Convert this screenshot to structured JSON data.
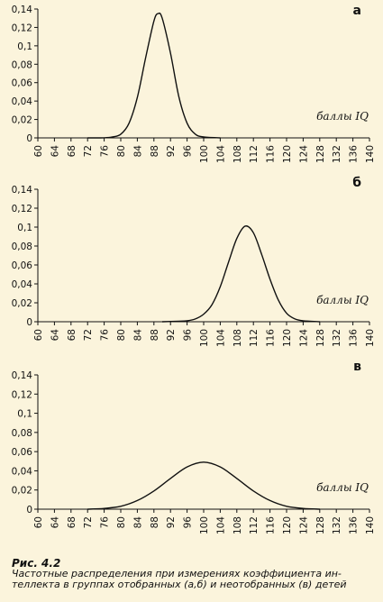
{
  "chart_data": [
    {
      "type": "line",
      "panel_label": "а",
      "xlabel": "баллы IQ",
      "ylabel": "",
      "xlim": [
        60,
        140
      ],
      "ylim": [
        0,
        0.14
      ],
      "x_ticks": [
        60,
        64,
        68,
        72,
        76,
        80,
        84,
        88,
        92,
        96,
        100,
        104,
        108,
        112,
        116,
        120,
        124,
        128,
        132,
        136,
        140
      ],
      "y_ticks": [
        "0",
        "0,02",
        "0,04",
        "0,06",
        "0,08",
        "0,1",
        "0,12",
        "0,14"
      ],
      "series": [
        {
          "x": [
            72,
            76,
            78,
            80,
            82,
            84,
            86,
            88,
            89,
            90,
            92,
            94,
            96,
            98,
            100,
            104
          ],
          "y": [
            0,
            0.0001,
            0.001,
            0.004,
            0.016,
            0.044,
            0.087,
            0.127,
            0.135,
            0.13,
            0.092,
            0.045,
            0.016,
            0.004,
            0.001,
            0
          ]
        }
      ]
    },
    {
      "type": "line",
      "panel_label": "б",
      "xlabel": "баллы IQ",
      "ylabel": "",
      "xlim": [
        60,
        140
      ],
      "ylim": [
        0,
        0.14
      ],
      "x_ticks": [
        60,
        64,
        68,
        72,
        76,
        80,
        84,
        88,
        92,
        96,
        100,
        104,
        108,
        112,
        116,
        120,
        124,
        128,
        132,
        136,
        140
      ],
      "y_ticks": [
        "0",
        "0,02",
        "0,04",
        "0,06",
        "0,08",
        "0,1",
        "0,12",
        "0,14"
      ],
      "series": [
        {
          "x": [
            90,
            94,
            96,
            98,
            100,
            102,
            104,
            106,
            108,
            110,
            112,
            114,
            116,
            118,
            120,
            122,
            124,
            128
          ],
          "y": [
            0,
            0.0005,
            0.001,
            0.003,
            0.008,
            0.018,
            0.037,
            0.063,
            0.088,
            0.101,
            0.094,
            0.071,
            0.045,
            0.023,
            0.009,
            0.003,
            0.001,
            0
          ]
        }
      ]
    },
    {
      "type": "line",
      "panel_label": "в",
      "xlabel": "баллы IQ",
      "ylabel": "",
      "xlim": [
        60,
        140
      ],
      "ylim": [
        0,
        0.14
      ],
      "x_ticks": [
        60,
        64,
        68,
        72,
        76,
        80,
        84,
        88,
        92,
        96,
        100,
        104,
        108,
        112,
        116,
        120,
        124,
        128,
        132,
        136,
        140
      ],
      "y_ticks": [
        "0",
        "0,02",
        "0,04",
        "0,06",
        "0,08",
        "0,1",
        "0,12",
        "0,14"
      ],
      "series": [
        {
          "x": [
            72,
            76,
            80,
            84,
            88,
            92,
            96,
            100,
            104,
            108,
            112,
            116,
            120,
            124,
            128
          ],
          "y": [
            0,
            0.0008,
            0.003,
            0.009,
            0.019,
            0.032,
            0.044,
            0.049,
            0.044,
            0.032,
            0.019,
            0.009,
            0.003,
            0.0008,
            0
          ]
        }
      ]
    }
  ],
  "caption": {
    "figure_label": "Рис. 4.2",
    "text": "Частотные распределения при измерениях коэффициента ин-теллекта в группах отобранных (а,б) и неотобранных (в) детей"
  }
}
